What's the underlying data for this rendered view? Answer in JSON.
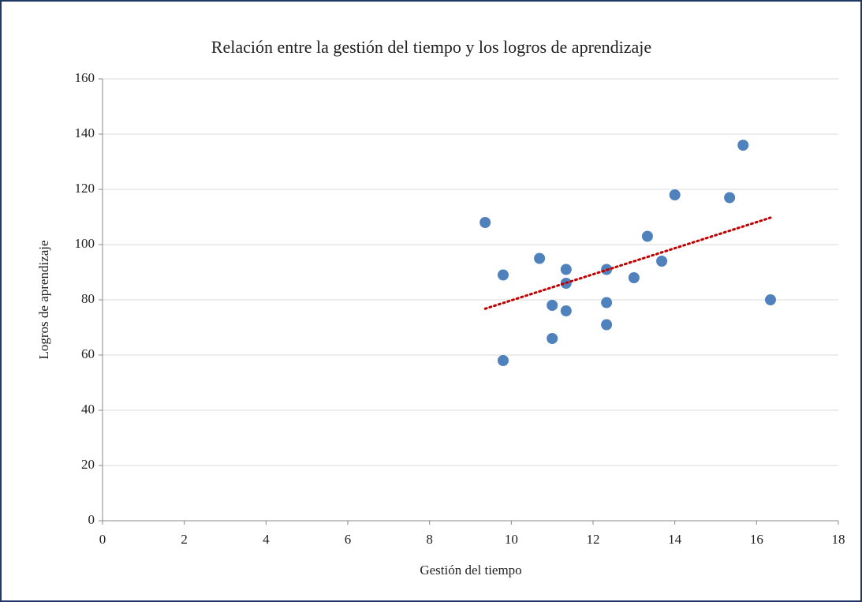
{
  "chart_data": {
    "type": "scatter",
    "title": "Relación entre la gestión del tiempo y los logros de aprendizaje",
    "x_label": "Gestión del tiempo",
    "y_label": "Logros de aprendizaje",
    "x": [
      9.36,
      9.8,
      9.8,
      10.69,
      11.0,
      11.0,
      11.34,
      11.34,
      11.34,
      12.33,
      12.33,
      12.33,
      13.0,
      13.33,
      13.68,
      14.0,
      15.34,
      15.67,
      16.34
    ],
    "values": [
      108,
      89,
      58,
      95,
      78,
      66,
      91,
      86,
      76,
      91,
      79,
      71,
      88,
      103,
      94,
      118,
      117,
      136,
      80
    ],
    "color": "#4f81bd",
    "trendline": "linear",
    "trendline_color": "#c00000",
    "xlim": [
      0,
      18
    ],
    "xticks": [
      0,
      2,
      4,
      6,
      8,
      10,
      12,
      14,
      16,
      18
    ],
    "ylim": [
      0,
      160
    ],
    "yticks": [
      0,
      20,
      40,
      60,
      80,
      100,
      120,
      140,
      160
    ],
    "grid": true
  }
}
